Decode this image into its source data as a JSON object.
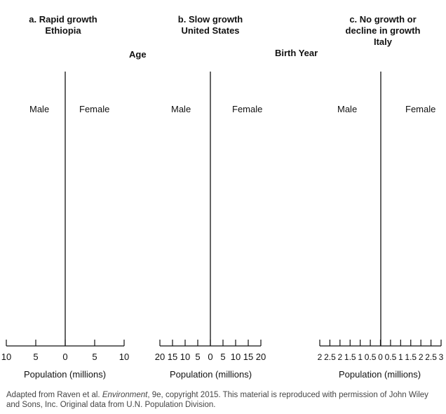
{
  "panels": [
    {
      "title_line1": "a. Rapid growth",
      "title_line2": "Ethiopia",
      "title_line3": "",
      "male_label": "Male",
      "female_label": "Female",
      "tick_labels": [
        "10",
        "5",
        "0",
        "5",
        "10"
      ],
      "axis_label": "Population (millions)"
    },
    {
      "title_line1": "b.  Slow growth",
      "title_line2": "United States",
      "title_line3": "",
      "male_label": "Male",
      "female_label": "Female",
      "tick_labels": [
        "20",
        "15",
        "10",
        "5",
        "0",
        "5",
        "10",
        "15",
        "20"
      ],
      "axis_label": "Population (millions)"
    },
    {
      "title_line1": "c.  No growth or",
      "title_line2": "decline in growth",
      "title_line3": "Italy",
      "male_label": "Male",
      "female_label": "Female",
      "tick_labels": [
        "2",
        "2.5",
        "2",
        "1.5",
        "1",
        "0.5",
        "0",
        "0.5",
        "1",
        "1.5",
        "2",
        "2.5",
        "3"
      ],
      "axis_label": "Population (millions)"
    }
  ],
  "age_label": "Age",
  "birth_year_label": "Birth Year",
  "footnote": {
    "prefix": "Adapted from Raven et al. ",
    "italic": "Environment",
    "suffix": ", 9e, copyright 2015. This material is reproduced with permission of John Wiley and Sons, Inc. Original data from U.N. Population Division."
  }
}
